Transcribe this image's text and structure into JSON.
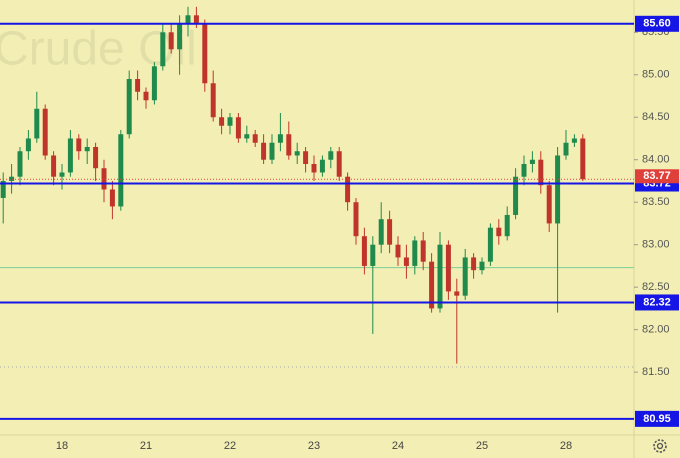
{
  "chart_data": {
    "type": "candlestick",
    "watermark": "Crude Oil",
    "categories": [
      null,
      null,
      null,
      null,
      null,
      null,
      null,
      "18",
      null,
      null,
      null,
      null,
      null,
      null,
      null,
      null,
      null,
      "21",
      null,
      null,
      null,
      null,
      null,
      null,
      null,
      null,
      null,
      "22",
      null,
      null,
      null,
      null,
      null,
      null,
      null,
      null,
      null,
      "23",
      null,
      null,
      null,
      null,
      null,
      null,
      null,
      null,
      null,
      "24",
      null,
      null,
      null,
      null,
      null,
      null,
      null,
      null,
      null,
      "25",
      null,
      null,
      null,
      null,
      null,
      null,
      null,
      null,
      null,
      "28",
      null,
      null
    ],
    "open": [
      83.55,
      83.75,
      83.8,
      84.1,
      84.25,
      84.6,
      84.05,
      83.8,
      83.85,
      84.25,
      84.1,
      84.15,
      83.9,
      83.65,
      83.45,
      84.3,
      84.95,
      84.8,
      84.7,
      85.1,
      85.5,
      85.3,
      85.6,
      85.7,
      85.6,
      84.9,
      84.5,
      84.4,
      84.5,
      84.25,
      84.3,
      84.2,
      84.0,
      84.2,
      84.3,
      84.05,
      84.1,
      83.95,
      83.85,
      84.0,
      84.1,
      83.8,
      83.5,
      83.1,
      82.75,
      83.0,
      83.3,
      83.0,
      82.85,
      82.75,
      83.05,
      82.8,
      82.25,
      83.0,
      82.45,
      82.4,
      82.85,
      82.7,
      82.8,
      83.2,
      83.1,
      83.35,
      83.8,
      83.95,
      84.0,
      83.7,
      83.25,
      84.05,
      84.2,
      84.25
    ],
    "high": [
      83.85,
      83.95,
      84.15,
      84.35,
      84.8,
      84.65,
      84.1,
      83.95,
      84.35,
      84.3,
      84.25,
      84.2,
      84.0,
      83.75,
      84.35,
      85.05,
      85.05,
      84.85,
      85.15,
      85.6,
      85.6,
      85.7,
      85.8,
      85.8,
      85.65,
      85.05,
      84.6,
      84.55,
      84.55,
      84.4,
      84.35,
      84.3,
      84.3,
      84.55,
      84.45,
      84.2,
      84.15,
      84.05,
      84.05,
      84.15,
      84.15,
      83.85,
      83.55,
      83.2,
      83.1,
      83.5,
      83.4,
      83.1,
      83.0,
      83.1,
      83.15,
      82.9,
      83.15,
      83.05,
      82.6,
      82.95,
      82.9,
      82.85,
      83.25,
      83.3,
      83.45,
      83.9,
      84.05,
      84.1,
      84.1,
      83.75,
      84.15,
      84.35,
      84.3,
      84.3
    ],
    "low": [
      83.25,
      83.6,
      83.7,
      84.0,
      84.2,
      84.0,
      83.7,
      83.65,
      83.8,
      84.0,
      83.95,
      83.75,
      83.5,
      83.3,
      83.4,
      84.25,
      84.7,
      84.6,
      84.65,
      85.05,
      85.25,
      85.0,
      85.45,
      85.55,
      84.8,
      84.45,
      84.3,
      84.3,
      84.2,
      84.2,
      84.15,
      83.95,
      83.95,
      84.1,
      84.0,
      83.95,
      83.85,
      83.75,
      83.8,
      83.9,
      83.75,
      83.4,
      83.0,
      82.65,
      81.95,
      82.9,
      82.9,
      82.75,
      82.6,
      82.65,
      82.7,
      82.2,
      82.2,
      82.35,
      81.6,
      82.35,
      82.6,
      82.65,
      82.75,
      83.0,
      83.05,
      83.3,
      83.7,
      83.85,
      83.6,
      83.15,
      82.2,
      84.0,
      84.15,
      83.75
    ],
    "close": [
      83.75,
      83.8,
      84.1,
      84.25,
      84.6,
      84.05,
      83.8,
      83.85,
      84.25,
      84.1,
      84.15,
      83.9,
      83.65,
      83.45,
      84.3,
      84.95,
      84.8,
      84.7,
      85.1,
      85.5,
      85.3,
      85.6,
      85.7,
      85.6,
      84.9,
      84.5,
      84.4,
      84.5,
      84.25,
      84.3,
      84.2,
      84.0,
      84.2,
      84.3,
      84.05,
      84.1,
      83.95,
      83.85,
      84.0,
      84.1,
      83.8,
      83.5,
      83.1,
      82.75,
      83.0,
      83.3,
      83.0,
      82.85,
      82.75,
      83.05,
      82.8,
      82.25,
      83.0,
      82.45,
      82.4,
      82.85,
      82.7,
      82.8,
      83.2,
      83.1,
      83.35,
      83.8,
      83.95,
      84.0,
      83.7,
      83.25,
      84.05,
      84.2,
      84.25,
      83.77
    ],
    "up_color": "#1f8a4c",
    "down_color": "#c0352b",
    "ylim": [
      80.76,
      85.88
    ],
    "yticks": [
      {
        "value": 81.5,
        "label": "81.50"
      },
      {
        "value": 82,
        "label": "82.00"
      },
      {
        "value": 82.5,
        "label": "82.50"
      },
      {
        "value": 83,
        "label": "83.00"
      },
      {
        "value": 83.5,
        "label": "83.50"
      },
      {
        "value": 84,
        "label": "84.00"
      },
      {
        "value": 84.5,
        "label": "84.50"
      },
      {
        "value": 85,
        "label": "85.00"
      },
      {
        "value": 85.5,
        "label": "85.50"
      }
    ],
    "levels": [
      {
        "value": 85.6,
        "label": "85.60"
      },
      {
        "value": 83.72,
        "label": "83.72"
      },
      {
        "value": 82.32,
        "label": "82.32"
      },
      {
        "value": 80.95,
        "label": "80.95"
      }
    ],
    "level_color": "#1515e6",
    "current_price": {
      "value": 83.77,
      "label": "83.77"
    },
    "current_color": "#e0403a",
    "guide_lines": [
      {
        "value": 82.73,
        "color": "#7ccf9a",
        "style": "solid"
      },
      {
        "value": 81.56,
        "color": "#a9a9a9",
        "style": "dotted"
      }
    ]
  }
}
